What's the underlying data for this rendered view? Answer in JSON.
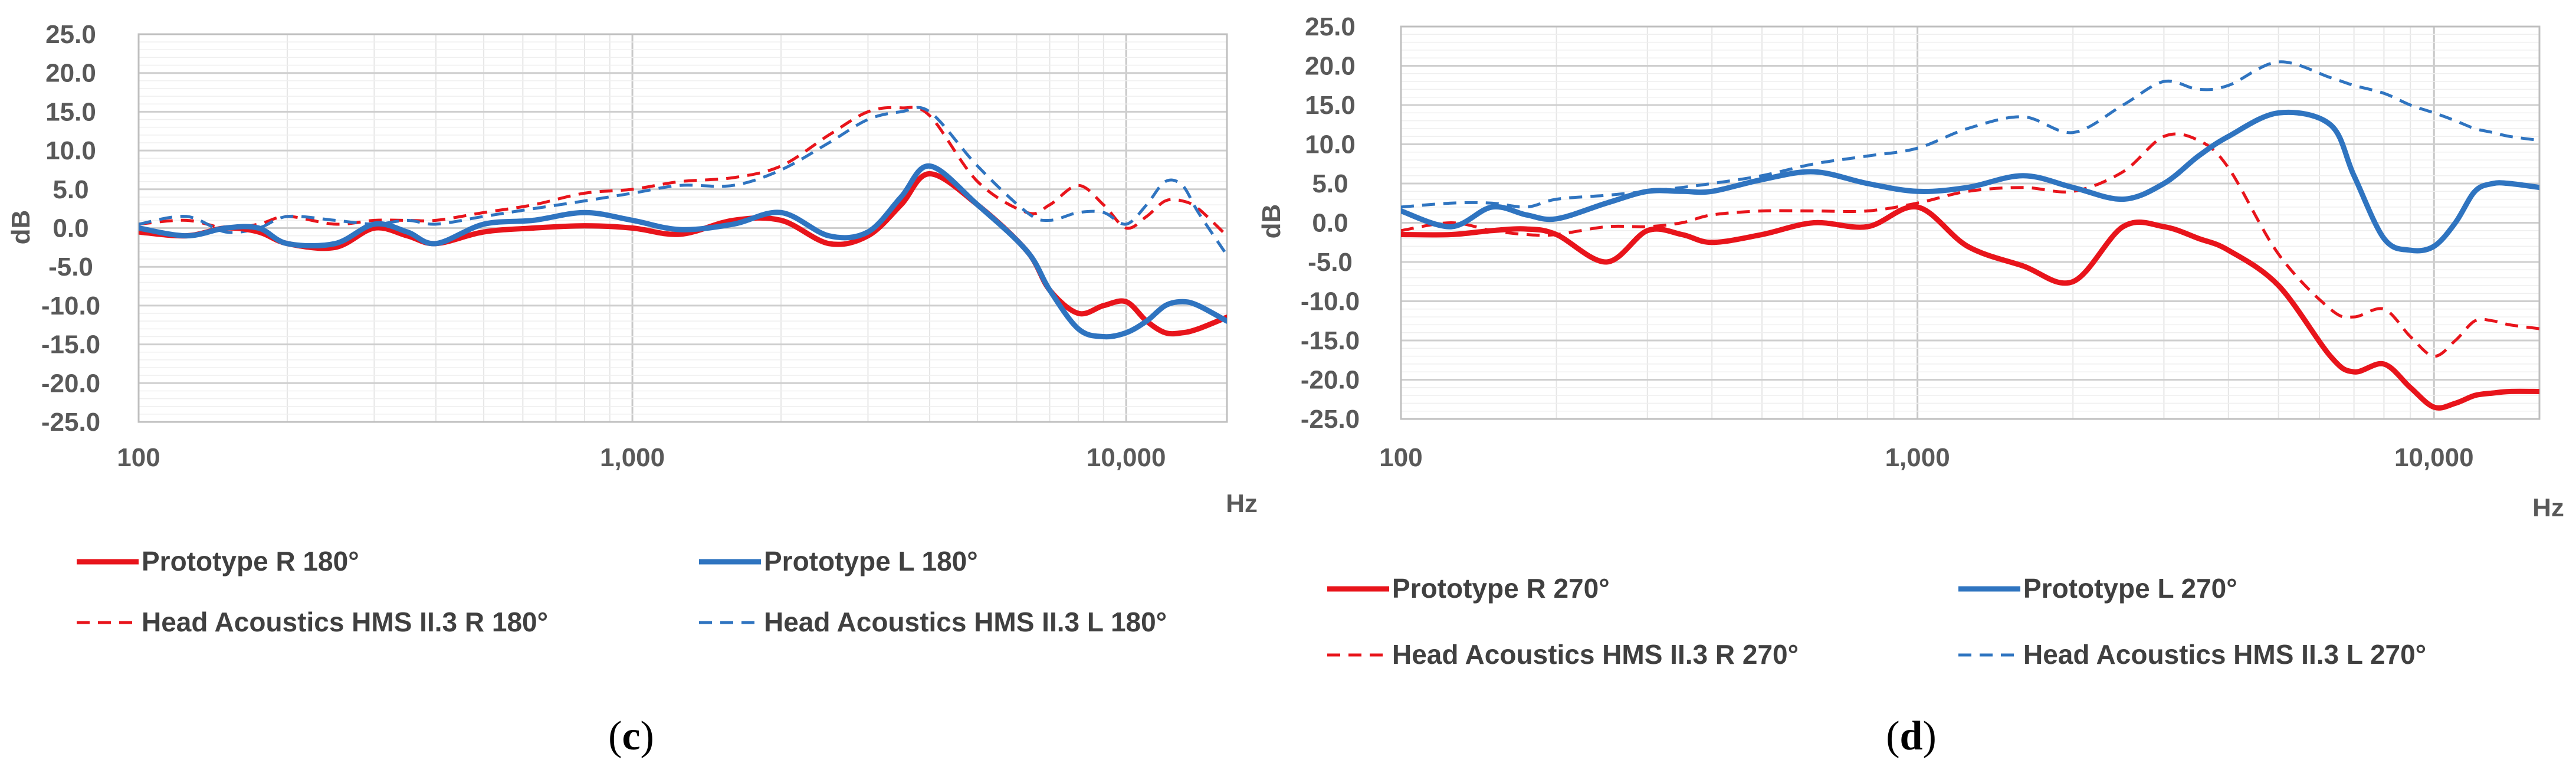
{
  "chart_data": [
    {
      "type": "line",
      "panel_label": "c",
      "xscale": "log",
      "xlim": [
        100,
        16000
      ],
      "ylim": [
        -25,
        25
      ],
      "yticks": [
        "25.0",
        "20.0",
        "15.0",
        "10.0",
        "5.0",
        "0.0",
        "-5.0",
        "-10.0",
        "-15.0",
        "-20.0",
        "-25.0"
      ],
      "xticks": [
        {
          "value": 100,
          "label": "100"
        },
        {
          "value": 1000,
          "label": "1,000"
        },
        {
          "value": 10000,
          "label": "10,000"
        }
      ],
      "xlabel": "Hz",
      "ylabel": "dB",
      "grid": true,
      "legend_position": "bottom",
      "series": [
        {
          "name": "Prototype R 180°",
          "color": "#e8141b",
          "dash": "solid",
          "x": [
            100,
            125,
            150,
            175,
            200,
            250,
            300,
            350,
            400,
            500,
            630,
            800,
            1000,
            1250,
            1600,
            2000,
            2500,
            3000,
            3500,
            4000,
            5000,
            6300,
            7000,
            8000,
            9000,
            10000,
            11000,
            12000,
            13000,
            14000,
            16000
          ],
          "y": [
            -0.5,
            -1.0,
            0.0,
            -0.5,
            -2.0,
            -2.5,
            0.0,
            -1.0,
            -2.0,
            -0.5,
            0.0,
            0.3,
            0.0,
            -0.8,
            1.0,
            1.0,
            -2.0,
            -1.0,
            3.0,
            7.0,
            3.0,
            -3.0,
            -8.0,
            -11.0,
            -10.0,
            -9.5,
            -12.0,
            -13.5,
            -13.5,
            -13.0,
            -11.5
          ]
        },
        {
          "name": "Prototype L 180°",
          "color": "#2f74c0",
          "dash": "solid",
          "x": [
            100,
            125,
            150,
            175,
            200,
            250,
            300,
            350,
            400,
            500,
            630,
            800,
            1000,
            1250,
            1600,
            2000,
            2500,
            3000,
            3500,
            4000,
            5000,
            6300,
            7000,
            8000,
            9000,
            10000,
            11000,
            12000,
            13000,
            14000,
            16000
          ],
          "y": [
            0.0,
            -1.0,
            0.0,
            0.0,
            -2.0,
            -2.0,
            0.5,
            -0.5,
            -2.0,
            0.5,
            1.0,
            2.0,
            1.0,
            -0.2,
            0.5,
            2.0,
            -1.0,
            -0.5,
            4.0,
            8.0,
            3.0,
            -3.0,
            -8.0,
            -13.0,
            -14.0,
            -13.5,
            -12.0,
            -10.0,
            -9.5,
            -10.0,
            -12.0
          ]
        },
        {
          "name": "Head Acoustics HMS II.3 R 180°",
          "color": "#e8141b",
          "dash": "dashed",
          "x": [
            100,
            125,
            150,
            175,
            200,
            250,
            300,
            350,
            400,
            500,
            630,
            800,
            1000,
            1250,
            1600,
            2000,
            2500,
            3000,
            3500,
            4000,
            5000,
            6300,
            7000,
            8000,
            9000,
            10000,
            11000,
            12000,
            13000,
            14000,
            16000
          ],
          "y": [
            0.5,
            1.0,
            0.0,
            0.5,
            1.5,
            0.5,
            1.0,
            1.0,
            1.0,
            2.0,
            3.0,
            4.5,
            5.0,
            6.0,
            6.5,
            8.0,
            12.0,
            15.0,
            15.5,
            14.5,
            6.0,
            2.0,
            3.0,
            5.5,
            3.0,
            0.0,
            1.5,
            3.5,
            3.5,
            2.5,
            -1.0
          ]
        },
        {
          "name": "Head Acoustics HMS II.3 L 180°",
          "color": "#2f74c0",
          "dash": "dashed",
          "x": [
            100,
            125,
            150,
            175,
            200,
            250,
            300,
            350,
            400,
            500,
            630,
            800,
            1000,
            1250,
            1600,
            2000,
            2500,
            3000,
            3500,
            4000,
            5000,
            6300,
            7000,
            8000,
            9000,
            10000,
            11000,
            12000,
            13000,
            14000,
            16000
          ],
          "y": [
            0.5,
            1.5,
            -0.5,
            0.0,
            1.5,
            1.0,
            0.5,
            1.0,
            0.5,
            1.5,
            2.5,
            3.5,
            4.5,
            5.5,
            5.5,
            7.5,
            11.0,
            14.0,
            15.0,
            15.0,
            8.0,
            2.0,
            1.0,
            2.0,
            2.0,
            0.5,
            3.0,
            6.0,
            5.5,
            2.0,
            -3.5
          ]
        }
      ]
    },
    {
      "type": "line",
      "panel_label": "d",
      "xscale": "log",
      "xlim": [
        100,
        16000
      ],
      "ylim": [
        -25,
        25
      ],
      "yticks": [
        "25.0",
        "20.0",
        "15.0",
        "10.0",
        "5.0",
        "0.0",
        "-5.0",
        "-10.0",
        "-15.0",
        "-20.0",
        "-25.0"
      ],
      "xticks": [
        {
          "value": 100,
          "label": "100"
        },
        {
          "value": 1000,
          "label": "1,000"
        },
        {
          "value": 10000,
          "label": "10,000"
        }
      ],
      "xlabel": "Hz",
      "ylabel": "dB",
      "grid": true,
      "legend_position": "bottom",
      "series": [
        {
          "name": "Prototype R 270°",
          "color": "#e8141b",
          "dash": "solid",
          "x": [
            100,
            125,
            150,
            175,
            200,
            250,
            300,
            350,
            400,
            500,
            630,
            800,
            1000,
            1250,
            1600,
            2000,
            2500,
            3000,
            3500,
            4000,
            5000,
            6300,
            7000,
            8000,
            9000,
            10000,
            11000,
            12000,
            13000,
            14000,
            16000
          ],
          "y": [
            -1.5,
            -1.5,
            -1.0,
            -0.8,
            -1.5,
            -5.0,
            -1.0,
            -1.5,
            -2.5,
            -1.5,
            0.0,
            -0.5,
            2.0,
            -3.0,
            -5.5,
            -7.5,
            -0.5,
            -0.5,
            -2.0,
            -3.5,
            -8.0,
            -17.0,
            -19.0,
            -18.0,
            -21.0,
            -23.5,
            -23.0,
            -22.0,
            -21.7,
            -21.5,
            -21.5
          ]
        },
        {
          "name": "Prototype L 270°",
          "color": "#2f74c0",
          "dash": "solid",
          "x": [
            100,
            125,
            150,
            175,
            200,
            250,
            300,
            350,
            400,
            500,
            630,
            800,
            1000,
            1250,
            1600,
            2000,
            2500,
            3000,
            3500,
            4000,
            5000,
            6300,
            7000,
            8000,
            9000,
            10000,
            11000,
            12000,
            13000,
            14000,
            16000
          ],
          "y": [
            1.5,
            -0.5,
            2.0,
            1.0,
            0.5,
            2.5,
            4.0,
            4.0,
            4.0,
            5.5,
            6.5,
            5.0,
            4.0,
            4.5,
            6.0,
            4.5,
            3.0,
            5.0,
            8.5,
            11.0,
            14.0,
            12.5,
            6.0,
            -2.0,
            -3.5,
            -3.0,
            0.0,
            4.0,
            5.0,
            5.0,
            4.5
          ]
        },
        {
          "name": "Head Acoustics HMS II.3 R 270°",
          "color": "#e8141b",
          "dash": "dashed",
          "x": [
            100,
            125,
            150,
            175,
            200,
            250,
            300,
            350,
            400,
            500,
            630,
            800,
            1000,
            1250,
            1600,
            2000,
            2500,
            3000,
            3500,
            4000,
            5000,
            6300,
            7000,
            8000,
            9000,
            10000,
            11000,
            12000,
            13000,
            14000,
            16000
          ],
          "y": [
            -1.0,
            0.0,
            -1.0,
            -1.5,
            -1.5,
            -0.5,
            -0.5,
            0.0,
            1.0,
            1.5,
            1.5,
            1.5,
            2.5,
            4.0,
            4.5,
            4.0,
            6.5,
            11.0,
            10.5,
            7.0,
            -4.0,
            -11.0,
            -12.0,
            -11.0,
            -14.5,
            -17.0,
            -15.0,
            -12.5,
            -12.5,
            -13.0,
            -13.5
          ]
        },
        {
          "name": "Head Acoustics HMS II.3 L 270°",
          "color": "#2f74c0",
          "dash": "dashed",
          "x": [
            100,
            125,
            150,
            175,
            200,
            250,
            300,
            350,
            400,
            500,
            630,
            800,
            1000,
            1250,
            1600,
            2000,
            2500,
            3000,
            3500,
            4000,
            5000,
            6300,
            7000,
            8000,
            9000,
            10000,
            11000,
            12000,
            13000,
            14000,
            16000
          ],
          "y": [
            2.0,
            2.5,
            2.5,
            2.0,
            3.0,
            3.5,
            4.0,
            4.5,
            5.0,
            6.0,
            7.5,
            8.5,
            9.5,
            12.0,
            13.5,
            11.5,
            15.0,
            18.0,
            17.0,
            17.5,
            20.5,
            18.5,
            17.5,
            16.5,
            15.0,
            14.0,
            13.0,
            12.0,
            11.5,
            11.0,
            10.5
          ]
        }
      ]
    }
  ]
}
